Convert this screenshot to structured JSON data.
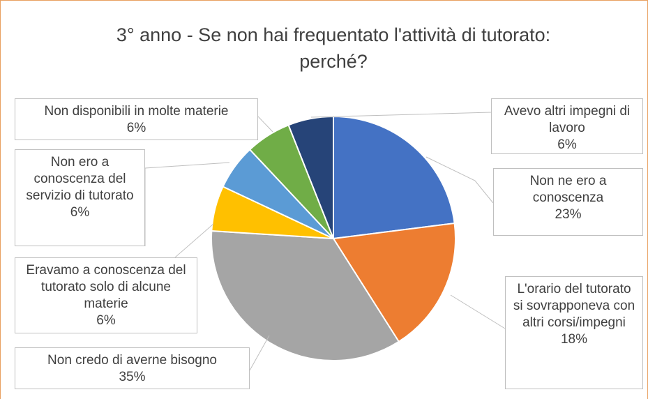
{
  "chart_data": {
    "type": "pie",
    "title": "3° anno - Se non hai frequentato l'attività di tutorato: perché?",
    "categories": [
      "Non ne ero a conoscenza",
      "L'orario del tutorato si sovrapponeva con altri corsi/impegni",
      "Non credo di averne bisogno",
      "Eravamo a conoscenza del tutorato solo di alcune materie",
      "Non ero a conoscenza del servizio di tutorato",
      "Non disponibili in molte materie",
      "Avevo altri impegni di lavoro"
    ],
    "values": [
      23,
      18,
      35,
      6,
      6,
      6,
      6
    ],
    "value_labels": [
      "23%",
      "18%",
      "35%",
      "6%",
      "6%",
      "6%",
      "6%"
    ],
    "colors": [
      "#4472c4",
      "#ed7d31",
      "#a5a5a5",
      "#ffc000",
      "#5b9bd5",
      "#70ad47",
      "#264478"
    ]
  }
}
